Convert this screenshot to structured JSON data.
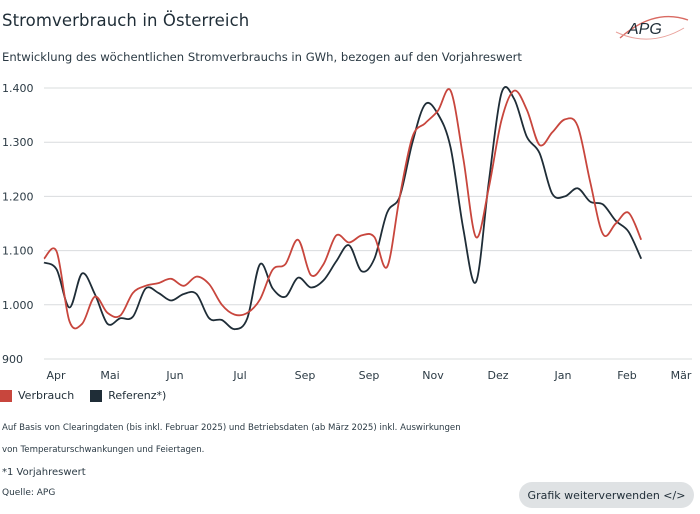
{
  "header": {
    "title": "Stromverbrauch in Österreich",
    "subtitle": "Entwicklung des wöchentlichen Stromverbrauchs in GWh, bezogen auf den Vorjahreswert",
    "logo_text": "APG"
  },
  "legend": {
    "items": [
      {
        "label": "Verbrauch",
        "color": "#c8463d"
      },
      {
        "label": "Referenz*)",
        "color": "#1f2d37"
      }
    ]
  },
  "notes": {
    "line1": "Auf Basis von Clearingdaten (bis inkl. Februar 2025) und Betriebsdaten (ab März  2025) inkl. Auswirkungen",
    "line2": "von Temperaturschwankungen und Feiertagen.",
    "footnote": "*1 Vorjahreswert",
    "source": "Quelle: APG"
  },
  "reuse_button": {
    "label": "Grafik weiterverwenden </>"
  },
  "colors": {
    "verbrauch": "#c8463d",
    "referenz": "#1f2d37",
    "grid": "#d9dcde",
    "axis_text": "#2b3a44"
  },
  "chart_data": {
    "type": "line",
    "title": "Stromverbrauch in Österreich",
    "xlabel": "",
    "ylabel": "",
    "x_ticks": [
      "Apr",
      "Mai",
      "Jun",
      "Jul",
      "Sep",
      "Sep",
      "Nov",
      "Dez",
      "Jan",
      "Feb",
      "Mär"
    ],
    "y_ticks": [
      "900",
      "1.000",
      "1.100",
      "1.200",
      "1.300",
      "1.400"
    ],
    "ylim": [
      900,
      1410
    ],
    "xlim": [
      0,
      51
    ],
    "grid": true,
    "legend_position": "bottom-left",
    "series": [
      {
        "name": "Verbrauch",
        "x": [
          0,
          1,
          2,
          3,
          4,
          5,
          6,
          7,
          8,
          9,
          10,
          11,
          12,
          13,
          14,
          15,
          16,
          17,
          18,
          19,
          20,
          21,
          22,
          23,
          24,
          25,
          26,
          27,
          28,
          29,
          30,
          31,
          32,
          33,
          34,
          35,
          36,
          37,
          38,
          39,
          40,
          41,
          42,
          43,
          44,
          45,
          46,
          47,
          48,
          49,
          50,
          51
        ],
        "values": [
          1085,
          1098,
          970,
          965,
          1015,
          985,
          980,
          1022,
          1035,
          1040,
          1048,
          1035,
          1052,
          1038,
          1000,
          982,
          985,
          1010,
          1065,
          1075,
          1120,
          1055,
          1075,
          1128,
          1115,
          1128,
          1125,
          1070,
          1200,
          1310,
          1335,
          1358,
          1395,
          1270,
          1125,
          1215,
          1340,
          1395,
          1360,
          1295,
          1318,
          1342,
          1330,
          1225,
          1130,
          1150,
          1170,
          1120,
          null,
          null,
          null,
          null
        ]
      },
      {
        "name": "Referenz*)",
        "x": [
          0,
          1,
          2,
          3,
          4,
          5,
          6,
          7,
          8,
          9,
          10,
          11,
          12,
          13,
          14,
          15,
          16,
          17,
          18,
          19,
          20,
          21,
          22,
          23,
          24,
          25,
          26,
          27,
          28,
          29,
          30,
          31,
          32,
          33,
          34,
          35,
          36,
          37,
          38,
          39,
          40,
          41,
          42,
          43,
          44,
          45,
          46,
          47,
          48,
          49,
          50,
          51
        ],
        "values": [
          1078,
          1065,
          995,
          1058,
          1020,
          965,
          975,
          978,
          1030,
          1022,
          1008,
          1020,
          1020,
          975,
          972,
          955,
          975,
          1075,
          1030,
          1015,
          1050,
          1032,
          1045,
          1080,
          1110,
          1062,
          1085,
          1170,
          1200,
          1300,
          1370,
          1352,
          1290,
          1140,
          1042,
          1225,
          1390,
          1380,
          1310,
          1280,
          1205,
          1200,
          1215,
          1190,
          1185,
          1155,
          1135,
          1085,
          null,
          null,
          null,
          null
        ]
      }
    ]
  }
}
